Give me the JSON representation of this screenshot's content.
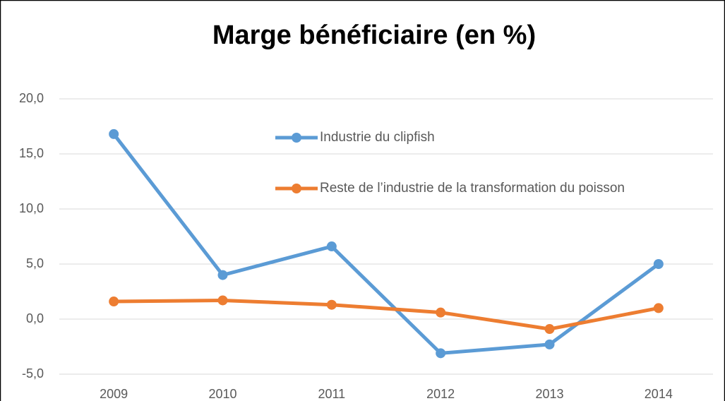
{
  "chart_data": {
    "type": "line",
    "title": "Marge bénéficiaire (en %)",
    "categories": [
      "2009",
      "2010",
      "2011",
      "2012",
      "2013",
      "2014"
    ],
    "series": [
      {
        "name": "Industrie du clipfish",
        "color": "#5b9bd5",
        "values": [
          16.8,
          4.0,
          6.6,
          -3.1,
          -2.3,
          5.0
        ]
      },
      {
        "name": "Reste de l’industrie de la transformation du poisson",
        "color": "#ed7d31",
        "values": [
          1.6,
          1.7,
          1.3,
          0.6,
          -0.9,
          1.0
        ]
      }
    ],
    "ylim": [
      -5,
      20
    ],
    "yticks": [
      {
        "value": -5,
        "label": "-5,0"
      },
      {
        "value": 0,
        "label": "0,0"
      },
      {
        "value": 5,
        "label": "5,0"
      },
      {
        "value": 10,
        "label": "10,0"
      },
      {
        "value": 15,
        "label": "15,0"
      },
      {
        "value": 20,
        "label": "20,0"
      }
    ],
    "grid": true
  }
}
